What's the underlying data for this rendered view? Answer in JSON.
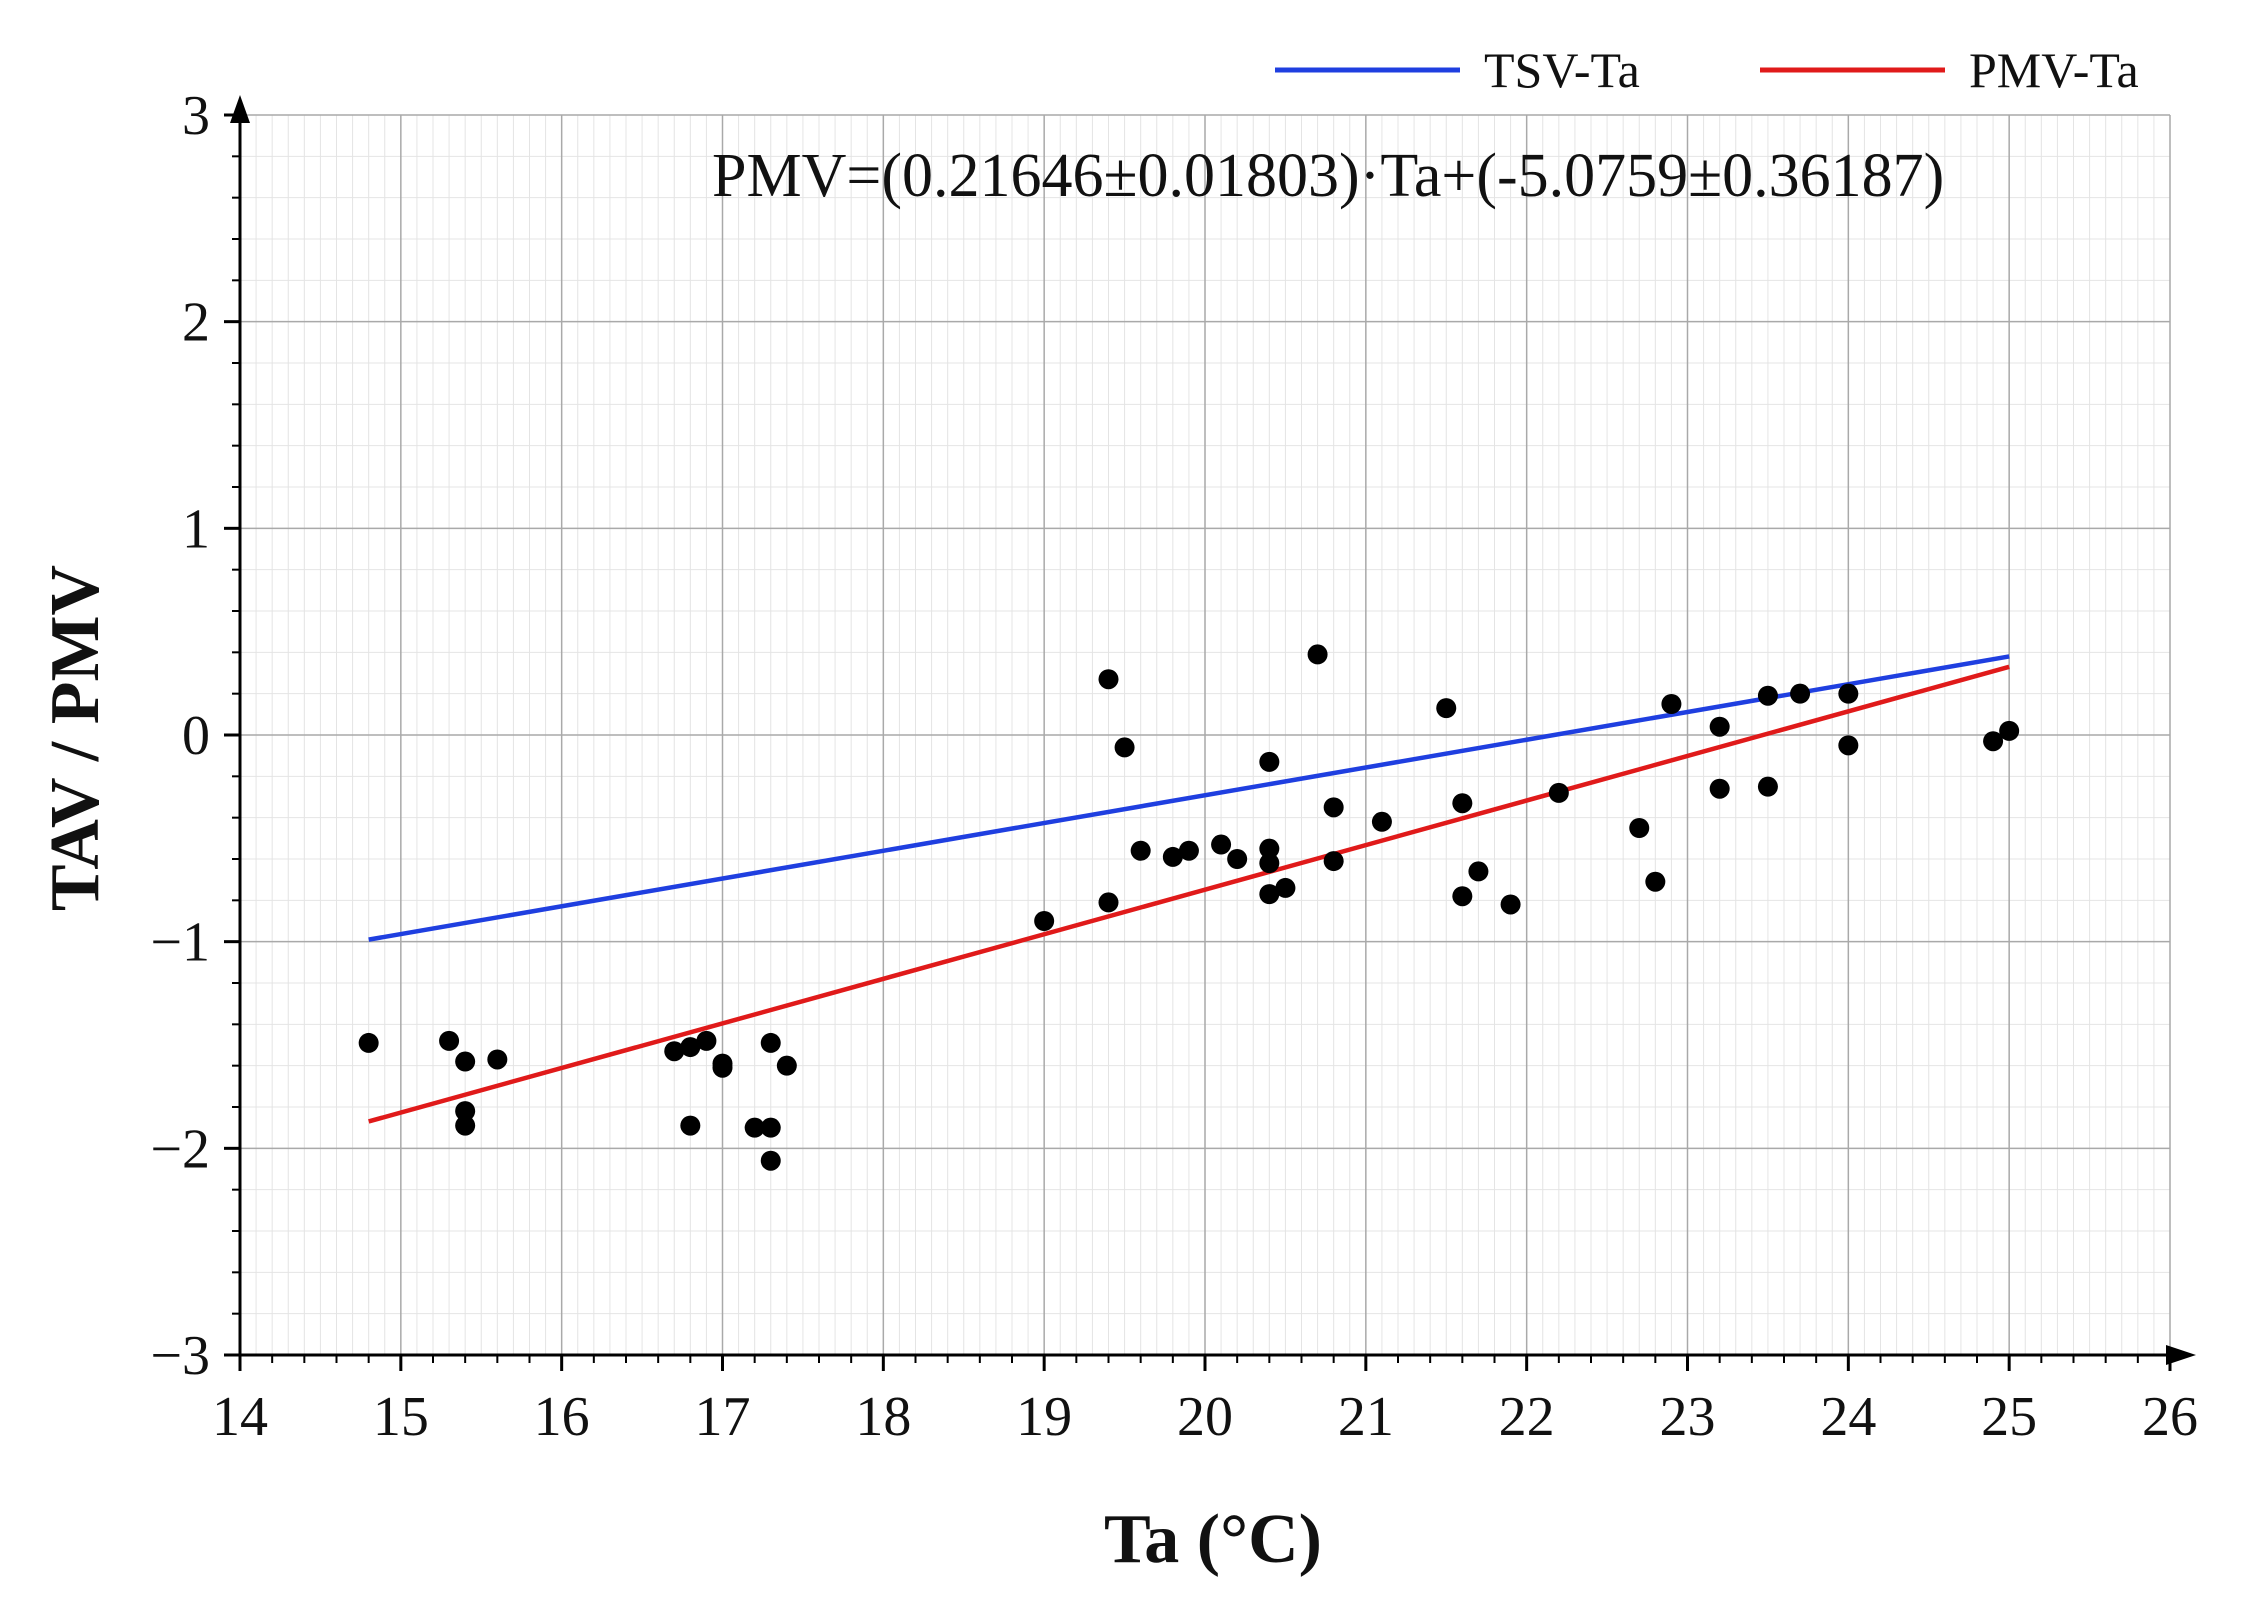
{
  "chart_data": {
    "type": "scatter",
    "xlabel": "Ta (°C)",
    "ylabel": "TAV / PMV",
    "xlim": [
      14,
      26
    ],
    "ylim": [
      -3,
      3
    ],
    "xticks": [
      14,
      15,
      16,
      17,
      18,
      19,
      20,
      21,
      22,
      23,
      24,
      25,
      26
    ],
    "yticks": [
      3,
      2,
      1,
      0,
      -1,
      -2,
      -3
    ],
    "ytick_labels": [
      "3",
      "2",
      "1",
      "0",
      "−1",
      "−2",
      "−3"
    ],
    "grid": true,
    "legend_position": "top-right",
    "annotation": "PMV=(0.21646±0.01803)·Ta+(-5.0759±0.36187)",
    "series": [
      {
        "name": "TSV-Ta",
        "kind": "line",
        "color": "#1f3fe0",
        "x": [
          14.8,
          25.0
        ],
        "y": [
          -0.99,
          0.38
        ]
      },
      {
        "name": "PMV-Ta",
        "kind": "line",
        "color": "#e01a1a",
        "x": [
          14.8,
          25.0
        ],
        "y": [
          -1.87,
          0.33
        ]
      }
    ],
    "points": {
      "color": "#000000",
      "x": [
        14.8,
        15.3,
        15.4,
        15.4,
        15.4,
        15.6,
        16.7,
        16.8,
        16.8,
        16.9,
        17.0,
        17.0,
        17.2,
        17.3,
        17.3,
        17.3,
        17.4,
        19.0,
        19.4,
        19.4,
        19.5,
        19.6,
        19.8,
        19.9,
        20.1,
        20.2,
        20.4,
        20.4,
        20.4,
        20.4,
        20.5,
        20.7,
        20.8,
        20.8,
        21.1,
        21.5,
        21.6,
        21.6,
        21.7,
        21.9,
        22.2,
        22.7,
        22.8,
        22.9,
        23.2,
        23.2,
        23.5,
        23.5,
        23.7,
        24.0,
        24.0,
        24.9,
        25.0
      ],
      "y": [
        -1.49,
        -1.48,
        -1.58,
        -1.82,
        -1.89,
        -1.57,
        -1.53,
        -1.51,
        -1.89,
        -1.48,
        -1.59,
        -1.61,
        -1.9,
        -1.49,
        -1.9,
        -2.06,
        -1.6,
        -0.9,
        0.27,
        -0.81,
        -0.06,
        -0.56,
        -0.59,
        -0.56,
        -0.53,
        -0.6,
        -0.13,
        -0.55,
        -0.62,
        -0.77,
        -0.74,
        0.39,
        -0.35,
        -0.61,
        -0.42,
        0.13,
        -0.33,
        -0.78,
        -0.66,
        -0.82,
        -0.28,
        -0.45,
        -0.71,
        0.15,
        0.04,
        -0.26,
        0.19,
        -0.25,
        0.2,
        0.2,
        -0.05,
        -0.03,
        0.02
      ]
    }
  }
}
